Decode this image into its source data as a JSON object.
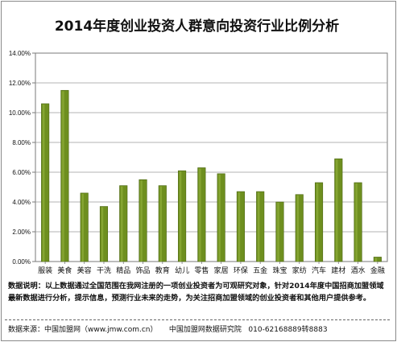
{
  "chart_data": {
    "type": "bar",
    "title": "2014年度创业投资人群意向投资行业比例分析",
    "xlabel": "",
    "ylabel": "",
    "categories": [
      "服装",
      "美食",
      "美容",
      "干洗",
      "精品",
      "饰品",
      "教育",
      "幼儿",
      "零售",
      "家居",
      "环保",
      "五金",
      "珠宝",
      "家纺",
      "汽车",
      "建材",
      "酒水",
      "金融"
    ],
    "values": [
      10.6,
      11.5,
      4.6,
      3.7,
      5.1,
      5.5,
      5.1,
      6.1,
      6.3,
      5.9,
      4.7,
      4.7,
      4.0,
      4.5,
      5.3,
      6.9,
      5.3,
      0.3
    ],
    "ylim": [
      0,
      14
    ],
    "yticks": [
      "0.00%",
      "2.00%",
      "4.00%",
      "6.00%",
      "8.00%",
      "10.00%",
      "12.00%",
      "14.00%"
    ],
    "grid": true,
    "bar_color": "#6e8f1f"
  },
  "note": {
    "label": "数据说明：",
    "text": "以上数据通过全国范围在我网注册的一项创业投资者为可观研究对象，针对2014年度中国招商加盟领域最新数据进行分析，提示信息，预测行业未来的走势，为关注招商加盟领域的创业投资者和其他用户提供参考。"
  },
  "source": {
    "text": "数据来源：中国加盟网（www.jmw.com.cn）     中国加盟网数据研究院   010-62168889转8883"
  }
}
